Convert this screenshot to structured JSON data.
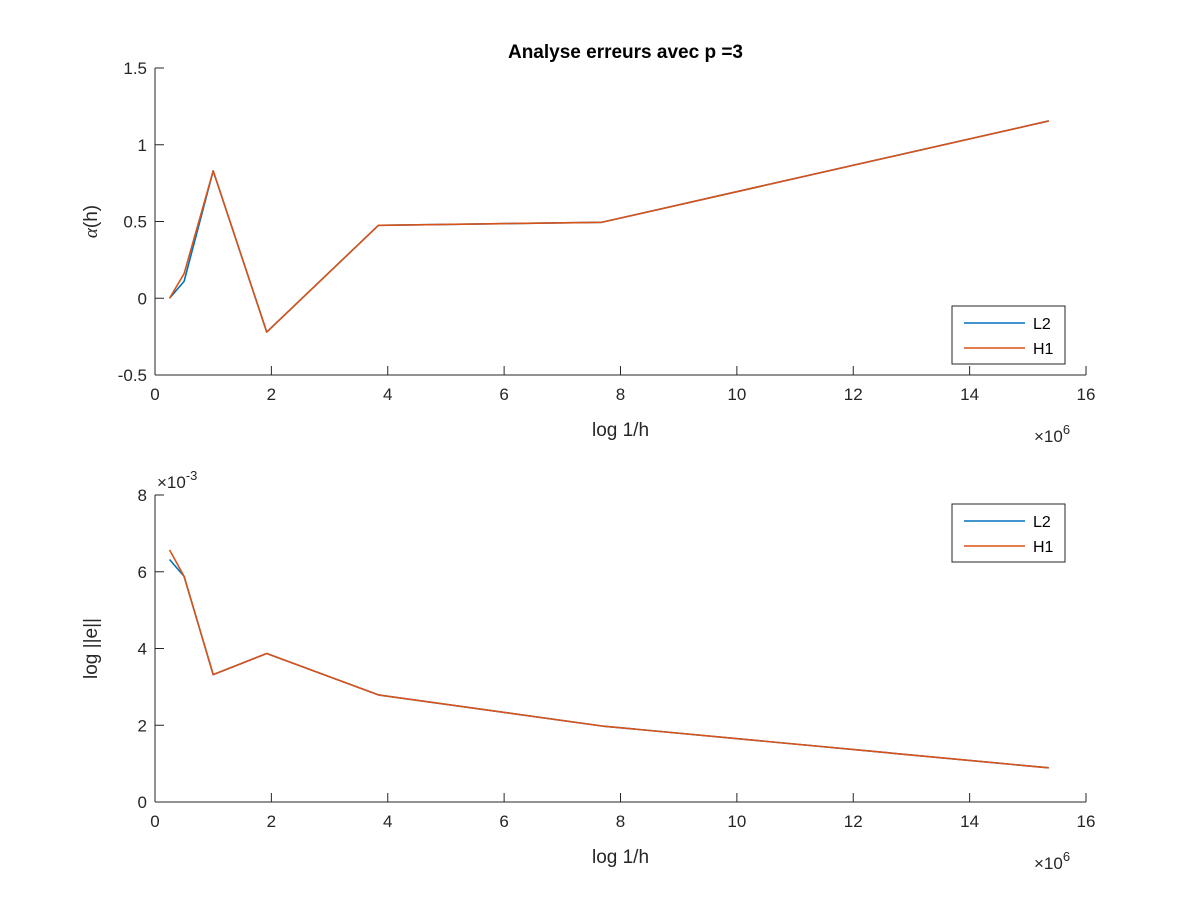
{
  "colors": {
    "L2": "#0072BD",
    "H1": "#D95319",
    "axis": "#262626"
  },
  "chart_data": [
    {
      "type": "line",
      "title": "Analyse erreurs avec p =3",
      "xlabel": "log 1/h",
      "ylabel_symbol": "α",
      "ylabel_rest": "(h)",
      "x_exponent_base": "×10",
      "x_exponent_power": "6",
      "x_multiplier": 1000000,
      "xlim": [
        0,
        16000000
      ],
      "ylim": [
        -0.5,
        1.5
      ],
      "xticks": [
        0,
        2000000,
        4000000,
        6000000,
        8000000,
        10000000,
        12000000,
        14000000,
        16000000
      ],
      "xtick_labels": [
        "0",
        "2",
        "4",
        "6",
        "8",
        "10",
        "12",
        "14",
        "16"
      ],
      "yticks": [
        -0.5,
        0,
        0.5,
        1,
        1.5
      ],
      "ytick_labels": [
        "-0.5",
        "0",
        "0.5",
        "1",
        "1.5"
      ],
      "legend_position": "bottom-right",
      "x": [
        250000,
        500000,
        1000000,
        1920000,
        3840000,
        7680000,
        15360000
      ],
      "series": [
        {
          "name": "L2",
          "values": [
            0,
            0.11,
            0.83,
            -0.22,
            0.475,
            0.495,
            1.155
          ]
        },
        {
          "name": "H1",
          "values": [
            0,
            0.16,
            0.83,
            -0.22,
            0.475,
            0.495,
            1.155
          ]
        }
      ]
    },
    {
      "type": "line",
      "xlabel": "log 1/h",
      "ylabel": "log ||e||",
      "x_exponent_base": "×10",
      "x_exponent_power": "6",
      "y_exponent_base": "×10",
      "y_exponent_power": "-3",
      "x_multiplier": 1000000,
      "y_multiplier": 0.001,
      "xlim": [
        0,
        16000000
      ],
      "ylim": [
        0,
        0.008
      ],
      "xticks": [
        0,
        2000000,
        4000000,
        6000000,
        8000000,
        10000000,
        12000000,
        14000000,
        16000000
      ],
      "xtick_labels": [
        "0",
        "2",
        "4",
        "6",
        "8",
        "10",
        "12",
        "14",
        "16"
      ],
      "yticks": [
        0,
        0.002,
        0.004,
        0.006,
        0.008
      ],
      "ytick_labels": [
        "0",
        "2",
        "4",
        "6",
        "8"
      ],
      "legend_position": "top-right",
      "x": [
        250000,
        500000,
        1000000,
        1920000,
        3840000,
        7680000,
        15360000
      ],
      "series": [
        {
          "name": "L2",
          "values": [
            0.00632,
            0.00588,
            0.00332,
            0.00387,
            0.00279,
            0.00198,
            0.00089
          ]
        },
        {
          "name": "H1",
          "values": [
            0.00657,
            0.00588,
            0.00332,
            0.00387,
            0.00279,
            0.00198,
            0.00089
          ]
        }
      ]
    }
  ]
}
